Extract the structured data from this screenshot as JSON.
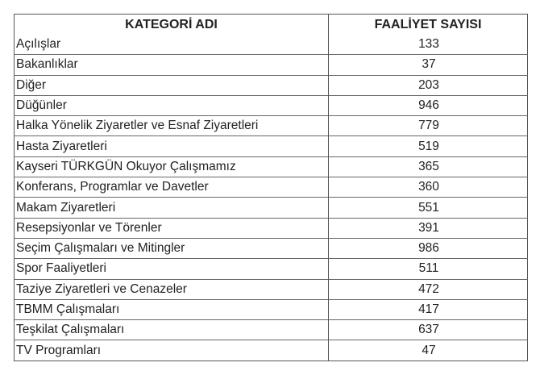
{
  "table": {
    "headers": [
      "KATEGORİ ADI",
      "FAALİYET SAYISI"
    ],
    "rows": [
      {
        "category": "Açılışlar",
        "count": "133"
      },
      {
        "category": "Bakanlıklar",
        "count": "37"
      },
      {
        "category": "Diğer",
        "count": "203"
      },
      {
        "category": "Düğünler",
        "count": "946"
      },
      {
        "category": "Halka Yönelik Ziyaretler ve Esnaf Ziyaretleri",
        "count": "779"
      },
      {
        "category": "Hasta Ziyaretleri",
        "count": "519"
      },
      {
        "category": "Kayseri TÜRKGÜN Okuyor Çalışmamız",
        "count": "365"
      },
      {
        "category": "Konferans, Programlar ve Davetler",
        "count": "360"
      },
      {
        "category": "Makam Ziyaretleri",
        "count": "551"
      },
      {
        "category": "Resepsiyonlar ve Törenler",
        "count": "391"
      },
      {
        "category": "Seçim Çalışmaları ve Mitingler",
        "count": "986"
      },
      {
        "category": "Spor Faaliyetleri",
        "count": "511"
      },
      {
        "category": "Taziye Ziyaretleri ve Cenazeler",
        "count": "472"
      },
      {
        "category": "TBMM Çalışmaları",
        "count": "417"
      },
      {
        "category": "Teşkilat Çalışmaları",
        "count": "637"
      },
      {
        "category": "TV Programları",
        "count": "47"
      }
    ]
  }
}
